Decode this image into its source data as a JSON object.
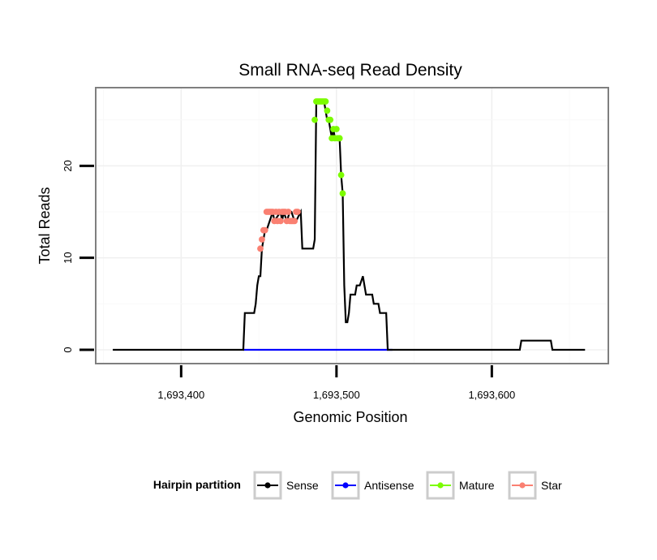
{
  "chart_data": {
    "type": "line",
    "title": "Small RNA-seq Read Density",
    "xlabel": "Genomic Position",
    "ylabel": "Total Reads",
    "xlim": [
      1693345,
      1693675
    ],
    "ylim": [
      -1.5,
      28.5
    ],
    "x_ticks": [
      1693400,
      1693500,
      1693600
    ],
    "x_tick_labels": [
      "1,693,400",
      "1,693,500",
      "1,693,600"
    ],
    "y_ticks": [
      0,
      10,
      20
    ],
    "y_tick_labels": [
      "0",
      "10",
      "20"
    ],
    "grid": true,
    "legend": {
      "title": "Hairpin partition",
      "position": "bottom",
      "entries": [
        {
          "name": "Sense",
          "color": "#000000"
        },
        {
          "name": "Antisense",
          "color": "#0000ff"
        },
        {
          "name": "Mature",
          "color": "#7cfc00"
        },
        {
          "name": "Star",
          "color": "#fa8072"
        }
      ]
    },
    "series": [
      {
        "name": "Sense",
        "color": "#000000",
        "x": [
          1693356,
          1693440,
          1693441,
          1693447,
          1693448,
          1693449,
          1693450,
          1693451,
          1693452,
          1693453,
          1693454,
          1693455,
          1693459,
          1693460,
          1693464,
          1693465,
          1693466,
          1693468,
          1693470,
          1693471,
          1693473,
          1693474,
          1693477,
          1693478,
          1693479,
          1693485,
          1693486,
          1693487,
          1693492,
          1693493,
          1693494,
          1693495,
          1693496,
          1693497,
          1693498,
          1693499,
          1693502,
          1693503,
          1693504,
          1693505,
          1693506,
          1693507,
          1693508,
          1693509,
          1693511,
          1693512,
          1693513,
          1693514,
          1693515,
          1693517,
          1693518,
          1693519,
          1693520,
          1693521,
          1693523,
          1693524,
          1693527,
          1693528,
          1693529,
          1693532,
          1693533,
          1693535,
          1693536,
          1693537,
          1693618,
          1693619,
          1693638,
          1693639,
          1693660
        ],
        "y": [
          0,
          0,
          4,
          4,
          5,
          7,
          8,
          8,
          11,
          12,
          13,
          13,
          15,
          14,
          15,
          14,
          15,
          14,
          15,
          15,
          14,
          14,
          15,
          11,
          11,
          11,
          12,
          27,
          27,
          26,
          25,
          25,
          24,
          23,
          24,
          23,
          23,
          19,
          17,
          7,
          3,
          3,
          4,
          6,
          6,
          6,
          7,
          7,
          7,
          8,
          7,
          6,
          6,
          6,
          6,
          5,
          5,
          4,
          4,
          4,
          0,
          0,
          0,
          0,
          0,
          1,
          1,
          0,
          0
        ]
      },
      {
        "name": "Antisense",
        "color": "#0000ff",
        "x": [
          1693440,
          1693536
        ],
        "y": [
          0,
          0
        ]
      },
      {
        "name": "Mature",
        "color": "#7cfc00",
        "x": [
          1693486,
          1693487,
          1693488,
          1693489,
          1693490,
          1693491,
          1693492,
          1693493,
          1693494,
          1693495,
          1693496,
          1693497,
          1693498,
          1693499,
          1693500,
          1693501,
          1693502,
          1693503,
          1693504
        ],
        "y": [
          25,
          27,
          27,
          27,
          27,
          27,
          27,
          27,
          26,
          25,
          25,
          23,
          24,
          23,
          24,
          23,
          23,
          19,
          17
        ]
      },
      {
        "name": "Star",
        "color": "#fa8072",
        "x": [
          1693451,
          1693452,
          1693453,
          1693454,
          1693455,
          1693456,
          1693457,
          1693458,
          1693459,
          1693460,
          1693461,
          1693462,
          1693463,
          1693464,
          1693465,
          1693466,
          1693467,
          1693468,
          1693469,
          1693470,
          1693471,
          1693472,
          1693473,
          1693474,
          1693475
        ],
        "y": [
          11,
          12,
          13,
          13,
          15,
          15,
          15,
          15,
          15,
          14,
          15,
          14,
          15,
          14,
          15,
          15,
          15,
          14,
          15,
          14,
          14,
          14,
          14,
          15,
          15
        ]
      }
    ]
  }
}
